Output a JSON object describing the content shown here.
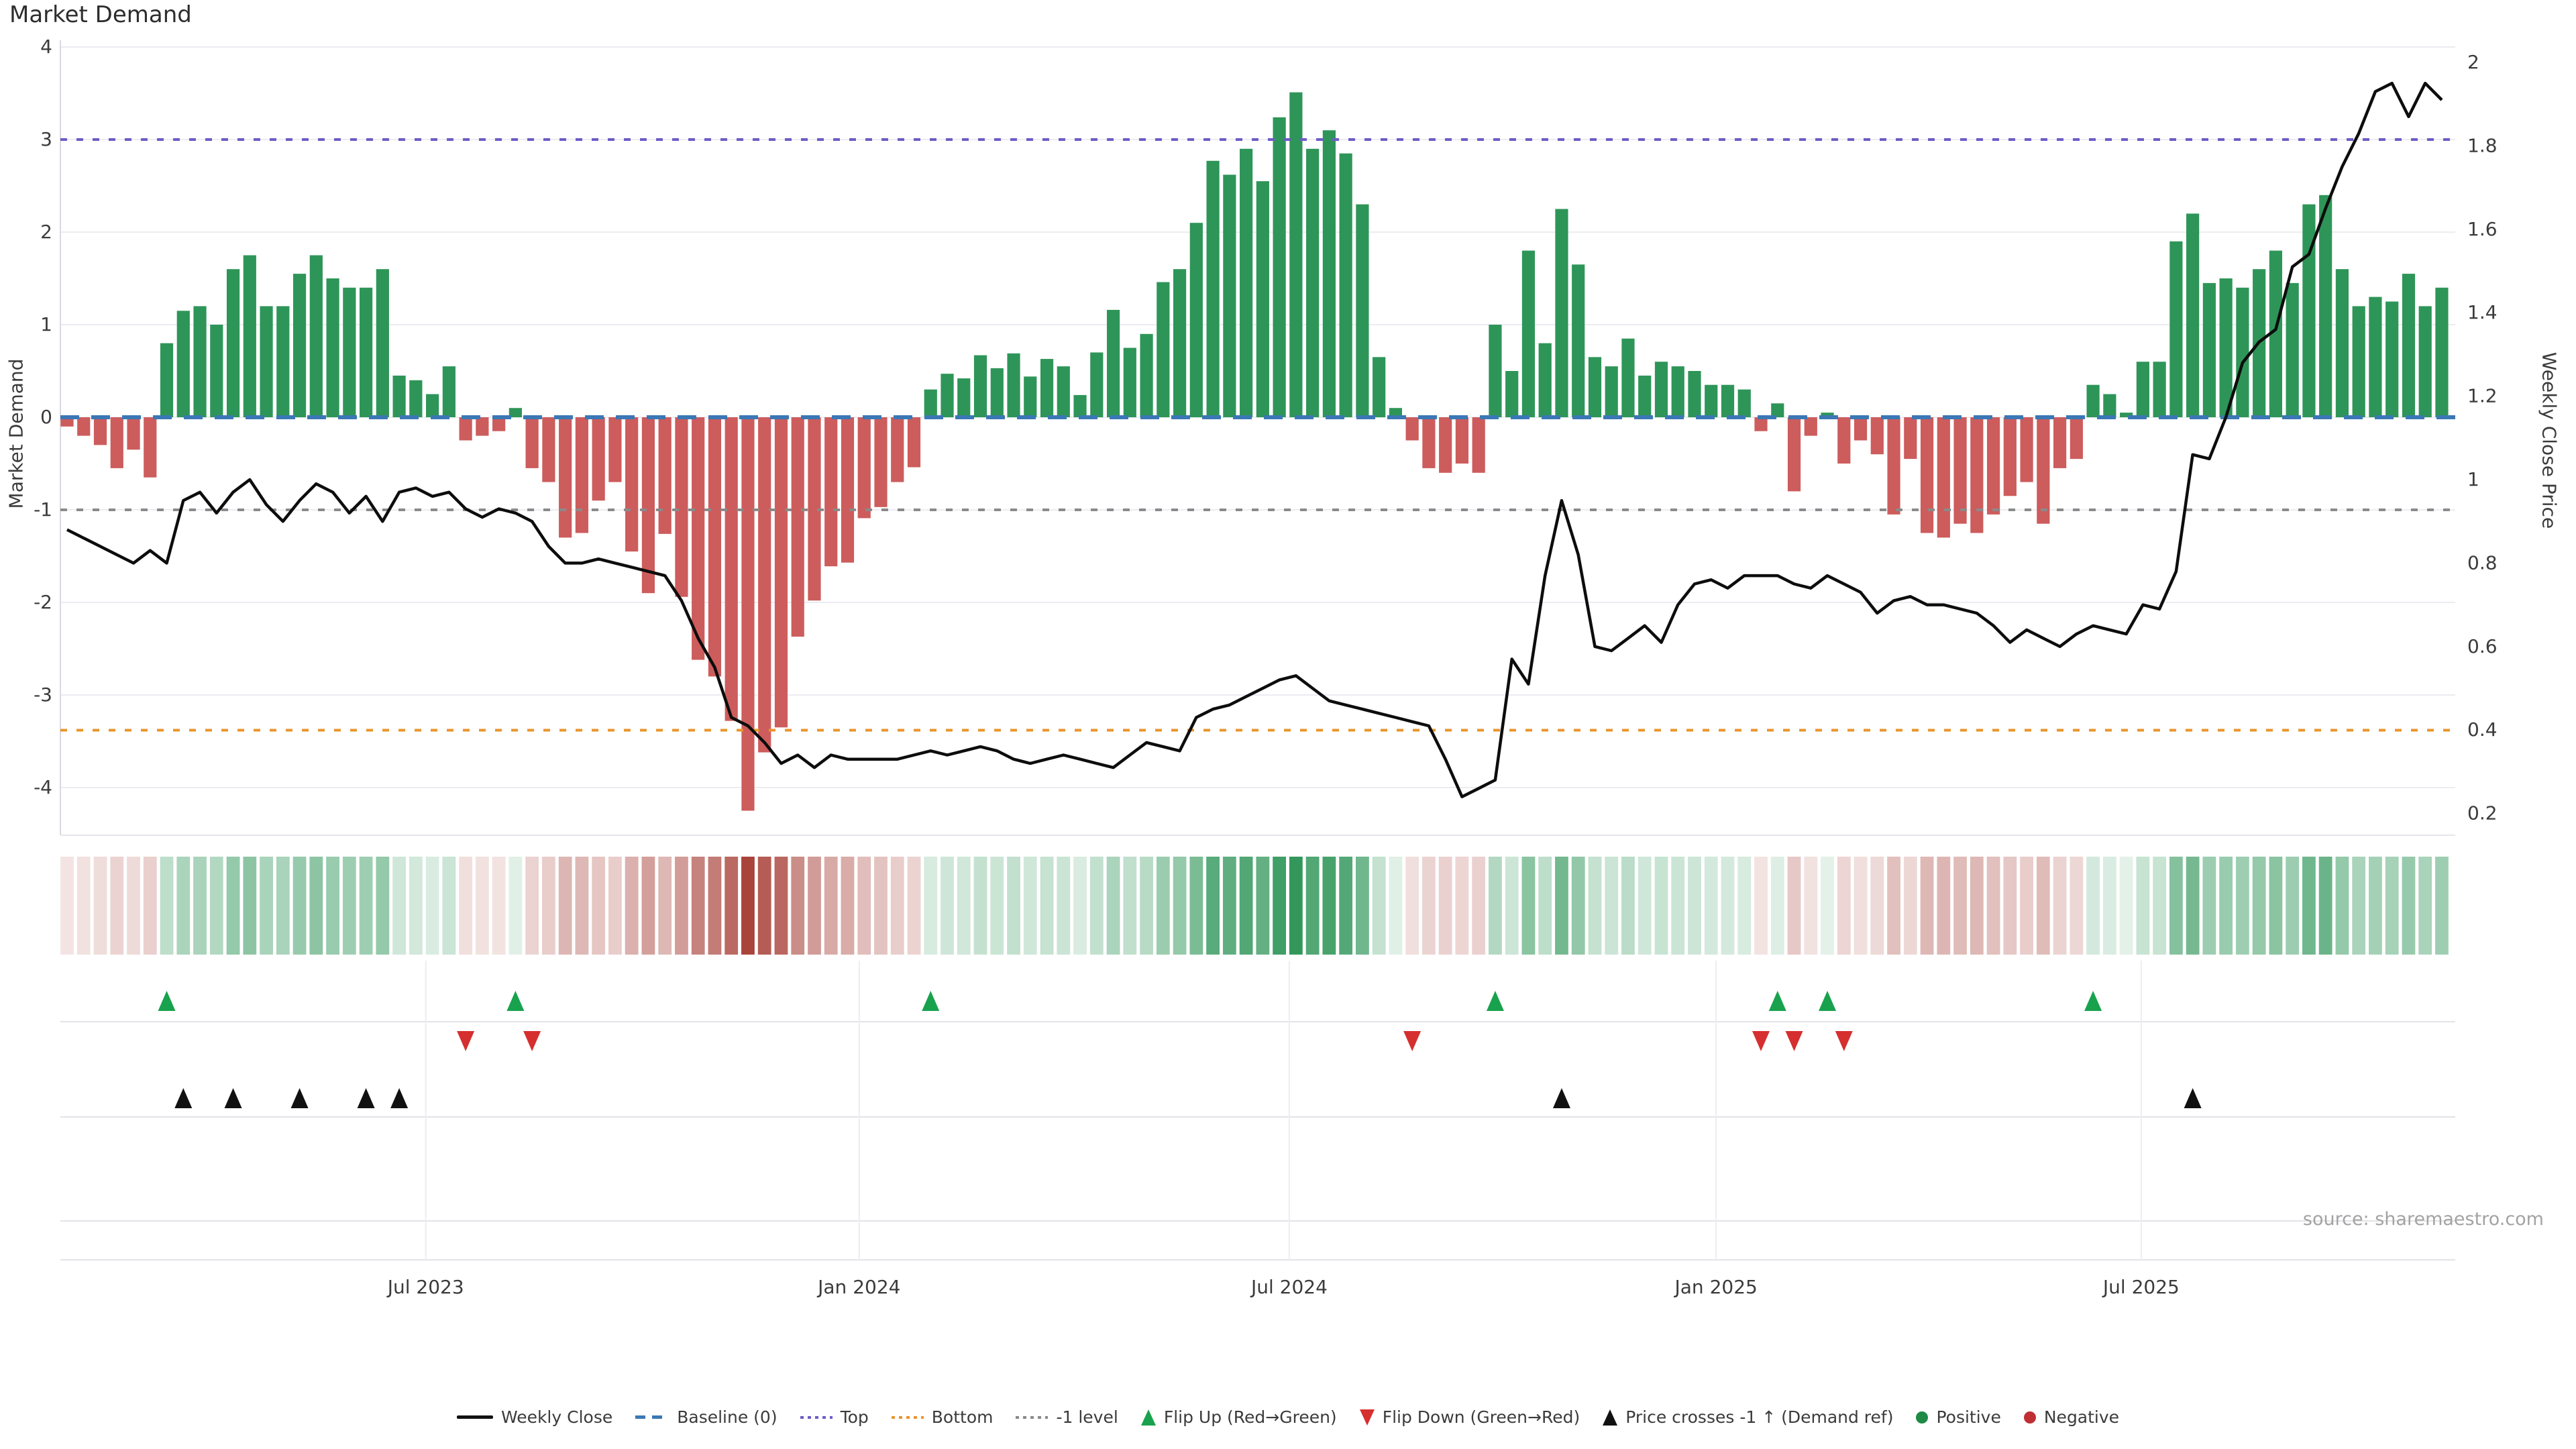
{
  "title": "Market Demand",
  "source_note": "source: sharemaestro.com",
  "axes": {
    "left_label": "Market Demand",
    "right_label": "Weekly Close Price",
    "left_ticks": [
      4,
      3,
      2,
      1,
      0,
      -1,
      -2,
      -3,
      -4
    ],
    "right_ticks": [
      2,
      1.8,
      1.6,
      1.4,
      1.2,
      1,
      0.8,
      0.6,
      0.4,
      0.2
    ],
    "x_ticks": [
      {
        "label": "Jul 2023",
        "week": 21.6
      },
      {
        "label": "Jan 2024",
        "week": 47.7
      },
      {
        "label": "Jul 2024",
        "week": 73.6
      },
      {
        "label": "Jan 2025",
        "week": 99.3
      },
      {
        "label": "Jul 2025",
        "week": 124.9
      }
    ]
  },
  "colors": {
    "bar_positive": "#2e9558",
    "bar_negative": "#cd5c5c",
    "price_line": "#0d0d0d",
    "baseline": "#3b78b5",
    "top_line": "#6f5bc5",
    "bottom_line": "#e8952e",
    "minus1_line": "#8a8a8a",
    "grid": "#ececf2",
    "panel_grid": "#e3e3e8",
    "flip_up": "#18a24d",
    "flip_down": "#d62f2f",
    "price_cross": "#111111",
    "heat_green": "#2e9558",
    "heat_red": "#a8423a"
  },
  "chart_data": {
    "type": "bar+line",
    "title": "Market Demand",
    "n_weeks": 144,
    "ylabel_left": "Market Demand",
    "ylabel_right": "Weekly Close Price",
    "ylim_demand": [
      -4.5,
      4.07
    ],
    "ylim_price": [
      0.15,
      2.05
    ],
    "grid": true,
    "reference_lines": {
      "baseline": 0,
      "top": 3.0,
      "bottom": -3.38,
      "minus1": -1.0
    },
    "series": [
      {
        "name": "Market Demand (weekly bars)",
        "values": [
          -0.1,
          -0.2,
          -0.3,
          -0.55,
          -0.35,
          -0.65,
          0.8,
          1.15,
          1.2,
          1.0,
          1.6,
          1.75,
          1.2,
          1.2,
          1.55,
          1.75,
          1.5,
          1.4,
          1.4,
          1.6,
          0.45,
          0.4,
          0.25,
          0.55,
          -0.25,
          -0.2,
          -0.15,
          0.1,
          -0.55,
          -0.7,
          -1.3,
          -1.25,
          -0.9,
          -0.7,
          -1.45,
          -1.9,
          -1.26,
          -1.94,
          -2.62,
          -2.8,
          -3.28,
          -4.25,
          -3.62,
          -3.35,
          -2.37,
          -1.98,
          -1.61,
          -1.57,
          -1.09,
          -0.97,
          -0.7,
          -0.54,
          0.3,
          0.47,
          0.42,
          0.67,
          0.53,
          0.69,
          0.44,
          0.63,
          0.55,
          0.24,
          0.7,
          1.16,
          0.75,
          0.9,
          1.46,
          1.6,
          2.1,
          2.77,
          2.62,
          2.9,
          2.55,
          3.24,
          3.51,
          2.9,
          3.1,
          2.85,
          2.3,
          0.65,
          0.1,
          -0.25,
          -0.55,
          -0.6,
          -0.5,
          -0.6,
          1.0,
          0.5,
          1.8,
          0.8,
          2.25,
          1.65,
          0.65,
          0.55,
          0.85,
          0.45,
          0.6,
          0.55,
          0.5,
          0.35,
          0.35,
          0.3,
          -0.15,
          0.15,
          -0.8,
          -0.2,
          0.05,
          -0.5,
          -0.25,
          -0.4,
          -1.05,
          -0.45,
          -1.25,
          -1.3,
          -1.15,
          -1.25,
          -1.05,
          -0.85,
          -0.7,
          -1.15,
          -0.55,
          -0.45,
          0.35,
          0.25,
          0.05,
          0.6,
          0.6,
          1.9,
          2.2,
          1.45,
          1.5,
          1.4,
          1.6,
          1.8,
          1.45,
          2.3,
          2.4,
          1.6,
          1.2,
          1.3,
          1.25,
          1.55,
          1.2,
          1.4
        ]
      },
      {
        "name": "Weekly Close",
        "values": [
          0.88,
          0.86,
          0.84,
          0.82,
          0.8,
          0.83,
          0.8,
          0.95,
          0.97,
          0.92,
          0.97,
          1.0,
          0.94,
          0.9,
          0.95,
          0.99,
          0.97,
          0.92,
          0.96,
          0.9,
          0.97,
          0.98,
          0.96,
          0.97,
          0.93,
          0.91,
          0.93,
          0.92,
          0.9,
          0.84,
          0.8,
          0.8,
          0.81,
          0.8,
          0.79,
          0.78,
          0.77,
          0.71,
          0.62,
          0.55,
          0.43,
          0.41,
          0.37,
          0.32,
          0.34,
          0.31,
          0.34,
          0.33,
          0.33,
          0.33,
          0.33,
          0.34,
          0.35,
          0.34,
          0.35,
          0.36,
          0.35,
          0.33,
          0.32,
          0.33,
          0.34,
          0.33,
          0.32,
          0.31,
          0.34,
          0.37,
          0.36,
          0.35,
          0.43,
          0.45,
          0.46,
          0.48,
          0.5,
          0.52,
          0.53,
          0.5,
          0.47,
          0.46,
          0.45,
          0.44,
          0.43,
          0.42,
          0.41,
          0.33,
          0.24,
          0.26,
          0.28,
          0.57,
          0.51,
          0.77,
          0.95,
          0.82,
          0.6,
          0.59,
          0.62,
          0.65,
          0.61,
          0.7,
          0.75,
          0.76,
          0.74,
          0.77,
          0.77,
          0.77,
          0.75,
          0.74,
          0.77,
          0.75,
          0.73,
          0.68,
          0.71,
          0.72,
          0.7,
          0.7,
          0.69,
          0.68,
          0.65,
          0.61,
          0.64,
          0.62,
          0.6,
          0.63,
          0.65,
          0.64,
          0.63,
          0.7,
          0.69,
          0.78,
          1.06,
          1.05,
          1.15,
          1.28,
          1.33,
          1.36,
          1.51,
          1.54,
          1.65,
          1.75,
          1.83,
          1.93,
          1.95,
          1.87,
          1.95,
          1.91
        ]
      }
    ],
    "markers": {
      "flip_up_weeks": [
        6,
        27,
        52,
        86,
        103,
        106,
        122
      ],
      "flip_down_weeks": [
        24,
        28,
        81,
        102,
        104,
        107
      ],
      "price_cross_weeks": [
        7,
        10,
        14,
        18,
        20,
        90,
        128
      ]
    },
    "heatmap": "derived from bar values: green intensity for positive demand, red intensity for negative demand",
    "legend_position": "bottom center"
  },
  "legend": {
    "items": [
      {
        "label": "Weekly Close",
        "type": "line",
        "color": "#111111"
      },
      {
        "label": "Baseline (0)",
        "type": "dashed",
        "color": "#3b78b5"
      },
      {
        "label": "Top",
        "type": "dotted",
        "color": "#6f5bc5"
      },
      {
        "label": "Bottom",
        "type": "dotted",
        "color": "#e8952e"
      },
      {
        "label": "-1 level",
        "type": "dotted",
        "color": "#8a8a8a"
      },
      {
        "label": "Flip Up (Red→Green)",
        "type": "tri-up",
        "color": "#18a24d"
      },
      {
        "label": "Flip Down (Green→Red)",
        "type": "tri-down",
        "color": "#d62f2f"
      },
      {
        "label": "Price crosses -1 ↑ (Demand ref)",
        "type": "tri-up",
        "color": "#111111"
      },
      {
        "label": "Positive",
        "type": "dot",
        "color": "#1f8a45"
      },
      {
        "label": "Negative",
        "type": "dot",
        "color": "#bf2f33"
      }
    ]
  }
}
